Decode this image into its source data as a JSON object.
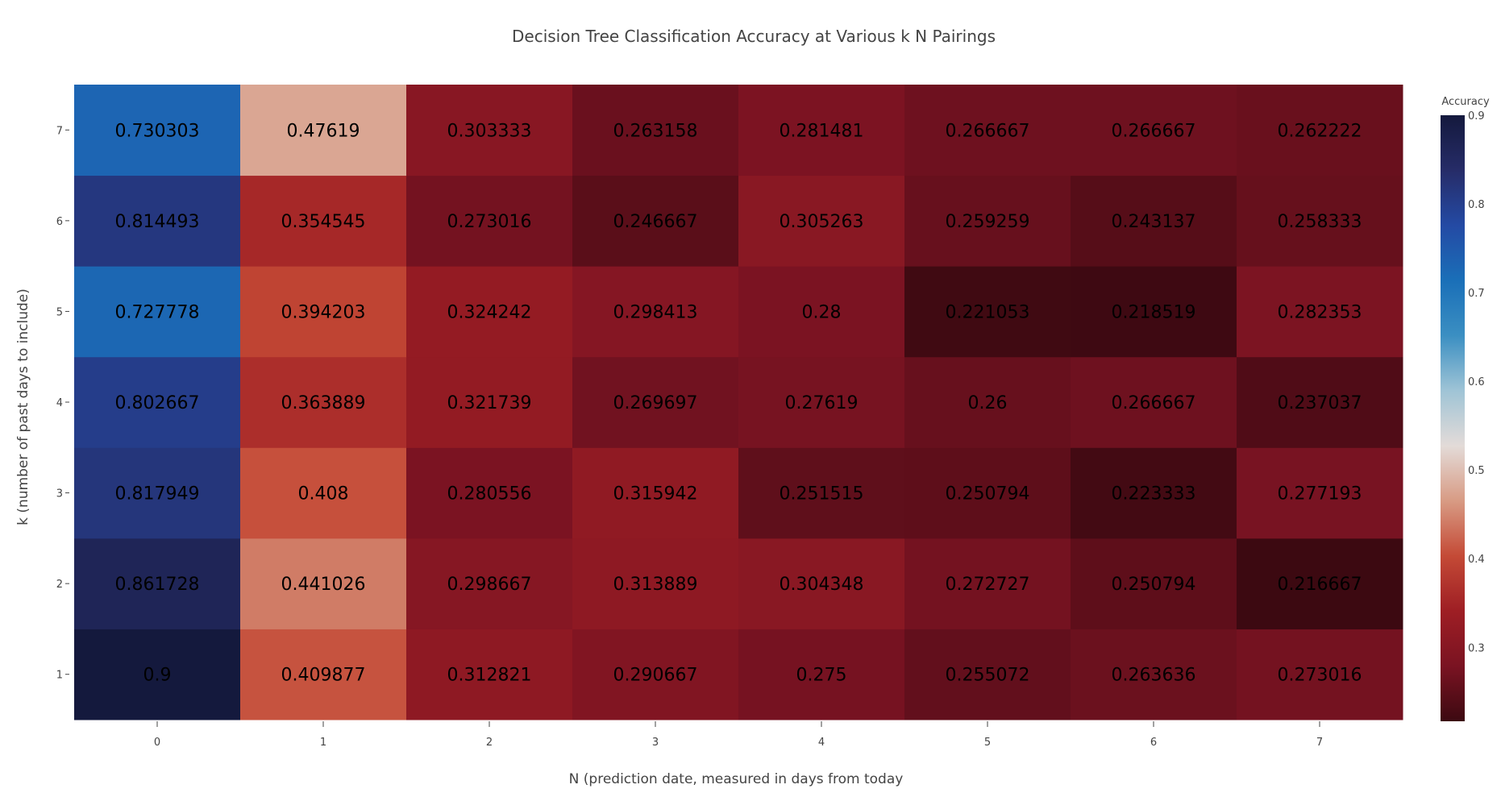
{
  "chart_data": {
    "type": "heatmap",
    "title": "Decision Tree Classification Accuracy at Various k N Pairings",
    "xlabel": "N (prediction date, measured in days from today",
    "ylabel": "k (number of past days to include)",
    "x": [
      0,
      1,
      2,
      3,
      4,
      5,
      6,
      7
    ],
    "y": [
      1,
      2,
      3,
      4,
      5,
      6,
      7
    ],
    "z": [
      [
        0.9,
        0.409877,
        0.312821,
        0.290667,
        0.275,
        0.255072,
        0.263636,
        0.273016
      ],
      [
        0.861728,
        0.441026,
        0.298667,
        0.313889,
        0.304348,
        0.272727,
        0.250794,
        0.216667
      ],
      [
        0.817949,
        0.408,
        0.280556,
        0.315942,
        0.251515,
        0.250794,
        0.223333,
        0.277193
      ],
      [
        0.802667,
        0.363889,
        0.321739,
        0.269697,
        0.27619,
        0.26,
        0.266667,
        0.237037
      ],
      [
        0.727778,
        0.394203,
        0.324242,
        0.298413,
        0.28,
        0.221053,
        0.218519,
        0.282353
      ],
      [
        0.814493,
        0.354545,
        0.273016,
        0.246667,
        0.305263,
        0.259259,
        0.243137,
        0.258333
      ],
      [
        0.730303,
        0.47619,
        0.303333,
        0.263158,
        0.281481,
        0.266667,
        0.266667,
        0.262222
      ]
    ],
    "colorbar": {
      "title": "Accuracy",
      "min": 0.216667,
      "max": 0.9,
      "ticks": [
        0.3,
        0.4,
        0.5,
        0.6,
        0.7,
        0.8,
        0.9
      ],
      "colorscale": [
        "#3c0911",
        "#7a1322",
        "#9e1e24",
        "#c44a36",
        "#d89b84",
        "#e3dbd8",
        "#9fc4d6",
        "#3b8fc2",
        "#1a6fb8",
        "#244aa4",
        "#262c68",
        "#14193d"
      ]
    }
  }
}
